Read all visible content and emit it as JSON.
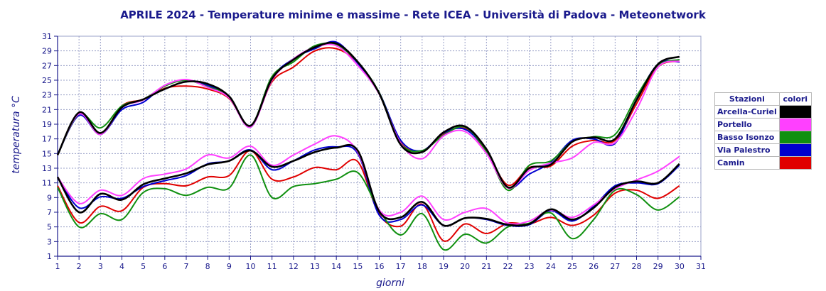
{
  "chart_data": {
    "type": "line",
    "title": "APRILE 2024 - Temperature minime e massime - Rete ICEA - Università di Padova - Meteonetwork",
    "xlabel": "giorni",
    "ylabel": "temperatura °C",
    "xlim": [
      1,
      31
    ],
    "ylim": [
      1,
      31
    ],
    "x_ticks": [
      1,
      2,
      3,
      4,
      5,
      6,
      7,
      8,
      9,
      10,
      11,
      12,
      13,
      14,
      15,
      16,
      17,
      18,
      19,
      20,
      21,
      22,
      23,
      24,
      25,
      26,
      27,
      28,
      29,
      30,
      31
    ],
    "y_ticks": [
      1,
      3,
      5,
      7,
      9,
      11,
      13,
      15,
      17,
      19,
      21,
      23,
      25,
      27,
      29,
      31
    ],
    "grid": true,
    "legend_position": "right",
    "legend": {
      "header_station": "Stazioni",
      "header_color": "colori"
    },
    "x": [
      1,
      2,
      3,
      4,
      5,
      6,
      7,
      8,
      9,
      10,
      11,
      12,
      13,
      14,
      15,
      16,
      17,
      18,
      19,
      20,
      21,
      22,
      23,
      24,
      25,
      26,
      27,
      28,
      29,
      30
    ],
    "series": [
      {
        "name": "Arcella-Curiel",
        "color": "#000000",
        "max": [
          14.8,
          20.6,
          17.8,
          21.3,
          22.4,
          23.8,
          24.8,
          24.5,
          22.8,
          18.8,
          25.2,
          27.8,
          29.5,
          30.0,
          27.5,
          23.2,
          16.2,
          15.2,
          17.9,
          18.7,
          15.6,
          10.4,
          13.0,
          13.5,
          16.6,
          17.2,
          17.0,
          22.3,
          27.2,
          28.2
        ],
        "min": [
          11.8,
          7.0,
          9.5,
          8.7,
          10.8,
          11.6,
          12.3,
          13.5,
          14.0,
          15.4,
          13.2,
          14.0,
          15.2,
          15.8,
          15.4,
          7.1,
          6.3,
          8.4,
          5.2,
          6.2,
          6.1,
          5.3,
          5.4,
          7.4,
          6.0,
          7.6,
          10.4,
          11.2,
          11.0,
          13.6
        ]
      },
      {
        "name": "Portello",
        "color": "#ff40ff",
        "max": [
          14.8,
          20.4,
          17.6,
          21.3,
          22.3,
          24.3,
          25.1,
          24.0,
          22.6,
          18.6,
          25.0,
          27.9,
          29.5,
          29.7,
          27.0,
          23.1,
          16.4,
          14.3,
          17.4,
          18.0,
          15.0,
          10.3,
          12.7,
          13.7,
          14.4,
          16.5,
          16.5,
          21.0,
          26.8,
          27.6
        ],
        "min": [
          11.8,
          8.2,
          10.0,
          9.3,
          11.6,
          12.2,
          12.9,
          14.8,
          14.4,
          16.0,
          13.4,
          14.8,
          16.3,
          17.4,
          15.2,
          7.3,
          7.0,
          9.2,
          6.0,
          7.0,
          7.5,
          5.5,
          5.8,
          7.3,
          6.3,
          8.0,
          10.2,
          11.4,
          12.6,
          14.6
        ]
      },
      {
        "name": "Basso Isonzo",
        "color": "#109010",
        "max": [
          14.8,
          20.4,
          18.5,
          21.5,
          22.4,
          24.2,
          25.0,
          24.1,
          22.8,
          18.8,
          25.5,
          27.5,
          29.7,
          29.8,
          27.5,
          23.3,
          16.4,
          15.4,
          17.5,
          18.6,
          15.3,
          10.0,
          13.4,
          14.0,
          16.6,
          17.3,
          17.6,
          22.8,
          27.0,
          27.8
        ],
        "min": [
          10.4,
          5.0,
          6.8,
          6.0,
          9.7,
          10.2,
          9.3,
          10.4,
          10.3,
          14.8,
          9.0,
          10.5,
          10.9,
          11.5,
          12.4,
          7.3,
          3.9,
          6.8,
          1.9,
          4.0,
          2.8,
          5.0,
          5.5,
          6.9,
          3.4,
          6.0,
          10.0,
          9.4,
          7.3,
          9.1
        ]
      },
      {
        "name": "Via Palestro",
        "color": "#0000d0",
        "max": [
          14.8,
          20.2,
          17.6,
          21.0,
          22.0,
          24.3,
          25.0,
          24.3,
          22.8,
          18.6,
          25.3,
          27.9,
          29.3,
          30.2,
          27.3,
          23.3,
          16.8,
          15.4,
          17.8,
          18.3,
          15.4,
          10.4,
          12.2,
          13.8,
          16.8,
          17.0,
          16.4,
          22.4,
          27.2,
          27.5
        ],
        "min": [
          11.8,
          7.6,
          9.1,
          8.9,
          10.5,
          11.3,
          12.0,
          13.6,
          14.0,
          15.5,
          12.8,
          14.0,
          15.5,
          15.9,
          15.0,
          6.6,
          6.0,
          8.0,
          5.2,
          6.2,
          6.0,
          5.2,
          5.3,
          7.2,
          5.8,
          7.8,
          10.6,
          11.0,
          10.9,
          13.4
        ]
      },
      {
        "name": "Camin",
        "color": "#e00000",
        "max": [
          14.8,
          20.6,
          17.6,
          21.5,
          22.4,
          23.9,
          24.2,
          23.8,
          22.5,
          18.8,
          24.8,
          26.8,
          29.0,
          29.3,
          27.4,
          23.2,
          16.5,
          15.4,
          17.7,
          18.4,
          15.3,
          10.7,
          13.1,
          13.3,
          16.0,
          16.8,
          16.8,
          21.8,
          26.8,
          27.6
        ],
        "min": [
          10.6,
          5.6,
          7.8,
          7.2,
          10.4,
          10.9,
          10.6,
          11.8,
          12.0,
          15.4,
          11.5,
          11.8,
          13.1,
          12.8,
          13.9,
          6.7,
          5.1,
          8.1,
          3.1,
          5.4,
          4.1,
          5.5,
          5.4,
          6.3,
          5.2,
          6.6,
          9.6,
          10.0,
          8.9,
          10.6
        ]
      }
    ]
  }
}
